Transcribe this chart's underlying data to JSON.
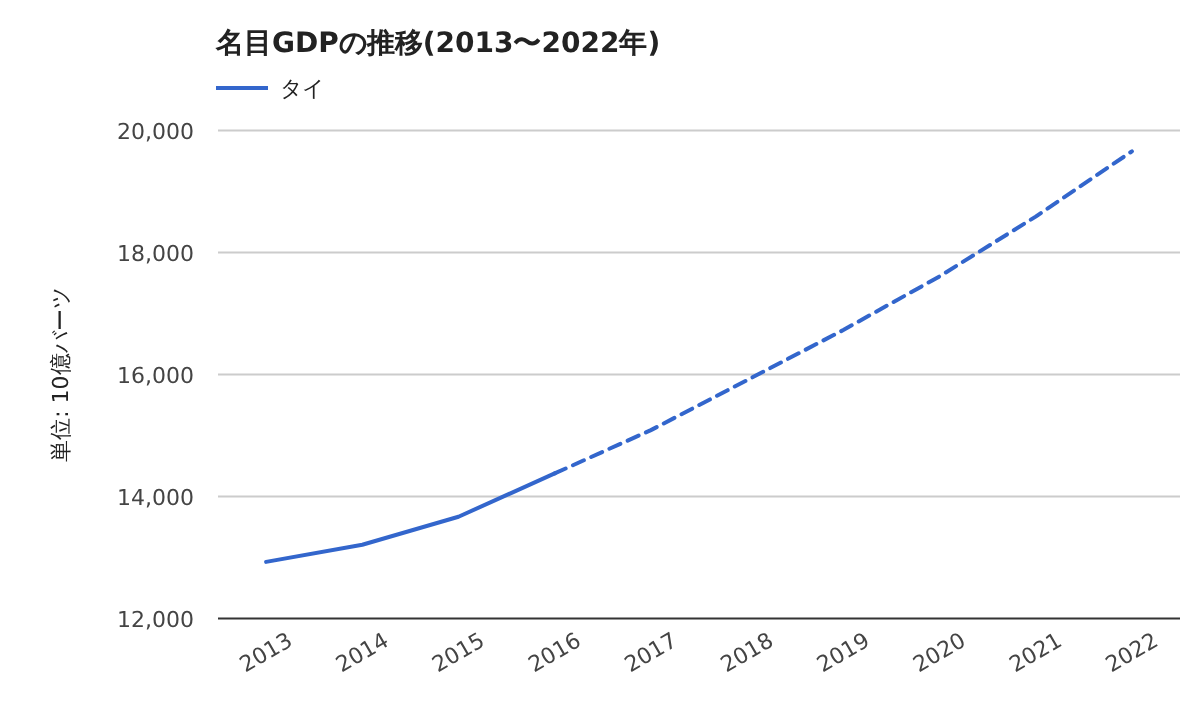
{
  "chart_data": {
    "type": "line",
    "title": "名目GDPの推移(2013〜2022年)",
    "ylabel": "単位: 10億バーツ",
    "categories": [
      "2013",
      "2014",
      "2015",
      "2016",
      "2017",
      "2018",
      "2019",
      "2020",
      "2021",
      "2022"
    ],
    "series": [
      {
        "name": "タイ",
        "color": "#3366cc",
        "line_style": "solid",
        "values": [
          12930,
          13210,
          13670,
          14380,
          null,
          null,
          null,
          null,
          null,
          null
        ]
      },
      {
        "color": "#3366cc",
        "line_style": "dashed",
        "values": [
          null,
          null,
          null,
          14380,
          15090,
          15910,
          16730,
          17610,
          18590,
          19660
        ]
      }
    ],
    "ylim": [
      12000,
      20000
    ],
    "yticks": [
      {
        "value": 12000,
        "label": "12,000"
      },
      {
        "value": 14000,
        "label": "14,000"
      },
      {
        "value": 16000,
        "label": "16,000"
      },
      {
        "value": 18000,
        "label": "18,000"
      },
      {
        "value": 20000,
        "label": "20,000"
      }
    ],
    "grid": "y",
    "legend": "top left",
    "marker": "none"
  }
}
